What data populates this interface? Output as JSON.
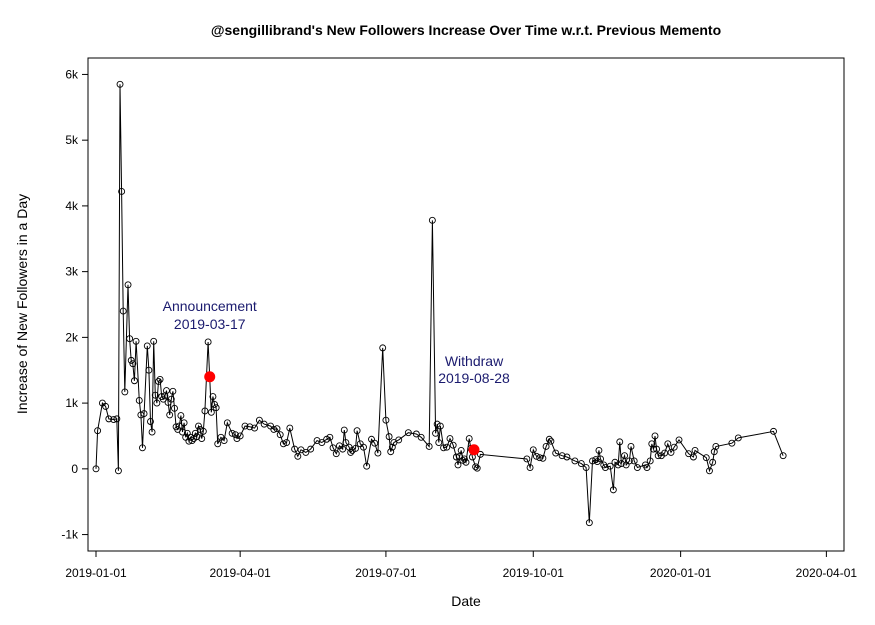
{
  "chart_data": {
    "type": "line",
    "title": "@sengillibrand's New Followers Increase Over Time w.r.t. Previous Memento",
    "xlabel": "Date",
    "ylabel": "Increase of New Followers in a Day",
    "x_ticks": [
      "2019-01-01",
      "2019-04-01",
      "2019-07-01",
      "2019-10-01",
      "2020-01-01",
      "2020-04-01"
    ],
    "y_ticks": [
      -1000,
      0,
      1000,
      2000,
      3000,
      4000,
      5000,
      6000
    ],
    "y_tick_labels": [
      "-1k",
      "0",
      "1k",
      "2k",
      "3k",
      "4k",
      "5k",
      "6k"
    ],
    "xlim": [
      "2018-12-27",
      "2020-04-12"
    ],
    "ylim": [
      -1250,
      6250
    ],
    "grid": false,
    "series": [
      {
        "color": "#000000",
        "marker": "open-circle",
        "points": [
          [
            "2019-01-01",
            0
          ],
          [
            "2019-01-02",
            580
          ],
          [
            "2019-01-05",
            1000
          ],
          [
            "2019-01-07",
            950
          ],
          [
            "2019-01-09",
            760
          ],
          [
            "2019-01-12",
            750
          ],
          [
            "2019-01-14",
            760
          ],
          [
            "2019-01-15",
            -30
          ],
          [
            "2019-01-16",
            5850
          ],
          [
            "2019-01-17",
            4220
          ],
          [
            "2019-01-18",
            2400
          ],
          [
            "2019-01-19",
            1170
          ],
          [
            "2019-01-21",
            2800
          ],
          [
            "2019-01-22",
            1980
          ],
          [
            "2019-01-23",
            1650
          ],
          [
            "2019-01-24",
            1600
          ],
          [
            "2019-01-25",
            1340
          ],
          [
            "2019-01-26",
            1940
          ],
          [
            "2019-01-28",
            1040
          ],
          [
            "2019-01-29",
            820
          ],
          [
            "2019-01-30",
            320
          ],
          [
            "2019-01-31",
            840
          ],
          [
            "2019-02-02",
            1870
          ],
          [
            "2019-02-03",
            1500
          ],
          [
            "2019-02-04",
            720
          ],
          [
            "2019-02-05",
            560
          ],
          [
            "2019-02-06",
            1940
          ],
          [
            "2019-02-07",
            1120
          ],
          [
            "2019-02-08",
            1000
          ],
          [
            "2019-02-09",
            1330
          ],
          [
            "2019-02-10",
            1360
          ],
          [
            "2019-02-11",
            1100
          ],
          [
            "2019-02-12",
            1060
          ],
          [
            "2019-02-13",
            1110
          ],
          [
            "2019-02-14",
            1190
          ],
          [
            "2019-02-15",
            1010
          ],
          [
            "2019-02-16",
            820
          ],
          [
            "2019-02-17",
            1060
          ],
          [
            "2019-02-18",
            1180
          ],
          [
            "2019-02-19",
            920
          ],
          [
            "2019-02-20",
            640
          ],
          [
            "2019-02-21",
            600
          ],
          [
            "2019-02-22",
            650
          ],
          [
            "2019-02-23",
            810
          ],
          [
            "2019-02-24",
            560
          ],
          [
            "2019-02-25",
            700
          ],
          [
            "2019-02-26",
            480
          ],
          [
            "2019-02-27",
            540
          ],
          [
            "2019-02-28",
            420
          ],
          [
            "2019-03-01",
            480
          ],
          [
            "2019-03-02",
            430
          ],
          [
            "2019-03-03",
            460
          ],
          [
            "2019-03-04",
            540
          ],
          [
            "2019-03-05",
            490
          ],
          [
            "2019-03-06",
            650
          ],
          [
            "2019-03-07",
            600
          ],
          [
            "2019-03-08",
            460
          ],
          [
            "2019-03-09",
            570
          ],
          [
            "2019-03-10",
            880
          ],
          [
            "2019-03-12",
            1930
          ],
          [
            "2019-03-14",
            860
          ],
          [
            "2019-03-15",
            1100
          ],
          [
            "2019-03-16",
            980
          ],
          [
            "2019-03-17",
            930
          ],
          [
            "2019-03-18",
            380
          ],
          [
            "2019-03-20",
            480
          ],
          [
            "2019-03-22",
            430
          ],
          [
            "2019-03-24",
            700
          ],
          [
            "2019-03-27",
            540
          ],
          [
            "2019-03-29",
            520
          ],
          [
            "2019-03-30",
            460
          ],
          [
            "2019-04-01",
            500
          ],
          [
            "2019-04-04",
            650
          ],
          [
            "2019-04-07",
            640
          ],
          [
            "2019-04-10",
            620
          ],
          [
            "2019-04-13",
            740
          ],
          [
            "2019-04-16",
            680
          ],
          [
            "2019-04-20",
            650
          ],
          [
            "2019-04-22",
            600
          ],
          [
            "2019-04-24",
            610
          ],
          [
            "2019-04-26",
            520
          ],
          [
            "2019-04-28",
            380
          ],
          [
            "2019-04-30",
            400
          ],
          [
            "2019-05-02",
            620
          ],
          [
            "2019-05-05",
            300
          ],
          [
            "2019-05-07",
            190
          ],
          [
            "2019-05-09",
            290
          ],
          [
            "2019-05-12",
            250
          ],
          [
            "2019-05-15",
            300
          ],
          [
            "2019-05-19",
            430
          ],
          [
            "2019-05-22",
            400
          ],
          [
            "2019-05-25",
            450
          ],
          [
            "2019-05-27",
            480
          ],
          [
            "2019-05-29",
            320
          ],
          [
            "2019-05-31",
            230
          ],
          [
            "2019-06-02",
            350
          ],
          [
            "2019-06-04",
            300
          ],
          [
            "2019-06-05",
            590
          ],
          [
            "2019-06-06",
            400
          ],
          [
            "2019-06-08",
            330
          ],
          [
            "2019-06-09",
            250
          ],
          [
            "2019-06-10",
            280
          ],
          [
            "2019-06-12",
            310
          ],
          [
            "2019-06-13",
            580
          ],
          [
            "2019-06-15",
            380
          ],
          [
            "2019-06-17",
            330
          ],
          [
            "2019-06-19",
            40
          ],
          [
            "2019-06-22",
            450
          ],
          [
            "2019-06-24",
            390
          ],
          [
            "2019-06-26",
            240
          ],
          [
            "2019-06-29",
            1840
          ],
          [
            "2019-07-01",
            740
          ],
          [
            "2019-07-03",
            490
          ],
          [
            "2019-07-04",
            260
          ],
          [
            "2019-07-05",
            330
          ],
          [
            "2019-07-06",
            400
          ],
          [
            "2019-07-09",
            440
          ],
          [
            "2019-07-15",
            550
          ],
          [
            "2019-07-20",
            530
          ],
          [
            "2019-07-23",
            480
          ],
          [
            "2019-07-28",
            340
          ],
          [
            "2019-07-30",
            3780
          ],
          [
            "2019-08-01",
            540
          ],
          [
            "2019-08-02",
            680
          ],
          [
            "2019-08-03",
            400
          ],
          [
            "2019-08-04",
            650
          ],
          [
            "2019-08-06",
            320
          ],
          [
            "2019-08-08",
            330
          ],
          [
            "2019-08-10",
            460
          ],
          [
            "2019-08-12",
            360
          ],
          [
            "2019-08-14",
            180
          ],
          [
            "2019-08-15",
            60
          ],
          [
            "2019-08-16",
            190
          ],
          [
            "2019-08-17",
            280
          ],
          [
            "2019-08-18",
            130
          ],
          [
            "2019-08-19",
            150
          ],
          [
            "2019-08-20",
            100
          ],
          [
            "2019-08-22",
            460
          ],
          [
            "2019-08-23",
            310
          ],
          [
            "2019-08-24",
            180
          ],
          [
            "2019-08-26",
            30
          ],
          [
            "2019-08-27",
            10
          ],
          [
            "2019-08-29",
            220
          ],
          [
            "2019-09-27",
            150
          ],
          [
            "2019-09-29",
            20
          ],
          [
            "2019-10-01",
            290
          ],
          [
            "2019-10-03",
            190
          ],
          [
            "2019-10-05",
            170
          ],
          [
            "2019-10-07",
            160
          ],
          [
            "2019-10-09",
            340
          ],
          [
            "2019-10-11",
            450
          ],
          [
            "2019-10-12",
            420
          ],
          [
            "2019-10-15",
            240
          ],
          [
            "2019-10-19",
            200
          ],
          [
            "2019-10-22",
            180
          ],
          [
            "2019-10-27",
            120
          ],
          [
            "2019-10-31",
            80
          ],
          [
            "2019-11-03",
            20
          ],
          [
            "2019-11-05",
            -820
          ],
          [
            "2019-11-07",
            120
          ],
          [
            "2019-11-09",
            140
          ],
          [
            "2019-11-10",
            110
          ],
          [
            "2019-11-11",
            280
          ],
          [
            "2019-11-12",
            150
          ],
          [
            "2019-11-14",
            60
          ],
          [
            "2019-11-15",
            20
          ],
          [
            "2019-11-18",
            40
          ],
          [
            "2019-11-20",
            -320
          ],
          [
            "2019-11-21",
            100
          ],
          [
            "2019-11-23",
            60
          ],
          [
            "2019-11-24",
            410
          ],
          [
            "2019-11-25",
            80
          ],
          [
            "2019-11-27",
            200
          ],
          [
            "2019-11-28",
            60
          ],
          [
            "2019-11-30",
            120
          ],
          [
            "2019-12-01",
            340
          ],
          [
            "2019-12-03",
            120
          ],
          [
            "2019-12-05",
            20
          ],
          [
            "2019-12-10",
            60
          ],
          [
            "2019-12-11",
            20
          ],
          [
            "2019-12-13",
            120
          ],
          [
            "2019-12-14",
            380
          ],
          [
            "2019-12-15",
            300
          ],
          [
            "2019-12-16",
            500
          ],
          [
            "2019-12-17",
            300
          ],
          [
            "2019-12-18",
            200
          ],
          [
            "2019-12-20",
            200
          ],
          [
            "2019-12-22",
            240
          ],
          [
            "2019-12-24",
            380
          ],
          [
            "2019-12-26",
            250
          ],
          [
            "2019-12-28",
            330
          ],
          [
            "2019-12-31",
            440
          ],
          [
            "2020-01-06",
            230
          ],
          [
            "2020-01-09",
            180
          ],
          [
            "2020-01-10",
            280
          ],
          [
            "2020-01-17",
            170
          ],
          [
            "2020-01-19",
            -30
          ],
          [
            "2020-01-21",
            100
          ],
          [
            "2020-01-22",
            260
          ],
          [
            "2020-01-23",
            340
          ],
          [
            "2020-02-02",
            390
          ],
          [
            "2020-02-06",
            470
          ],
          [
            "2020-02-28",
            570
          ],
          [
            "2020-03-05",
            200
          ]
        ]
      }
    ],
    "highlights": [
      {
        "x": "2019-03-13",
        "y": 1400,
        "color": "#ff0000",
        "label_line1": "Announcement",
        "label_line2": "2019-03-17"
      },
      {
        "x": "2019-08-25",
        "y": 290,
        "color": "#ff0000",
        "label_line1": "Withdraw",
        "label_line2": "2019-08-28"
      }
    ],
    "annotation_color": "#1a1a6e"
  }
}
